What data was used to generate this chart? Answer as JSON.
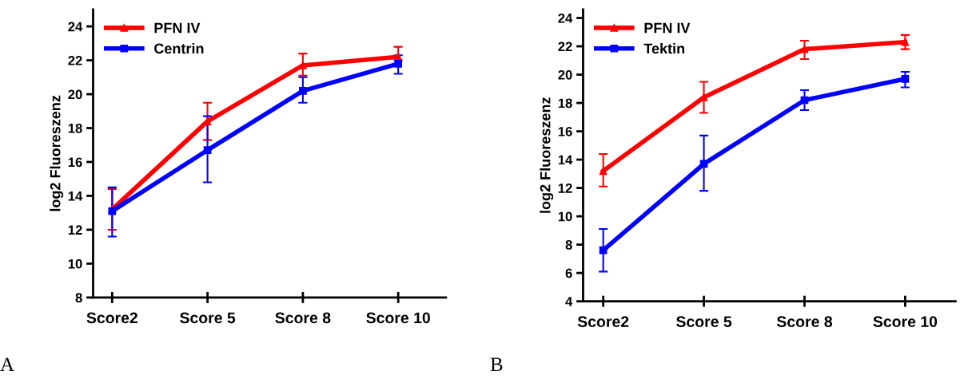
{
  "chart_data": [
    {
      "type": "line",
      "ylabel": "log2 Fluoreszenz",
      "categories": [
        "Score2",
        "Score 5",
        "Score 8",
        "Score 10"
      ],
      "ylim": [
        8,
        25
      ],
      "yticks": [
        8,
        10,
        12,
        14,
        16,
        18,
        20,
        22,
        24
      ],
      "grid": false,
      "legend": "top left",
      "annotations": [
        "A"
      ],
      "series": [
        {
          "name": "PFN IV",
          "color": "#ff0000",
          "marker": "triangle",
          "values": [
            13.2,
            18.4,
            21.7,
            22.2
          ],
          "errors": [
            [
              12.0,
              14.4
            ],
            [
              17.3,
              19.5
            ],
            [
              21.1,
              22.4
            ],
            [
              22.0,
              22.8
            ]
          ]
        },
        {
          "name": "Centrin",
          "color": "#0000ff",
          "marker": "square",
          "values": [
            13.1,
            16.7,
            20.2,
            21.8
          ],
          "errors": [
            [
              11.6,
              14.5
            ],
            [
              14.8,
              18.7
            ],
            [
              19.5,
              21.0
            ],
            [
              21.2,
              22.3
            ]
          ]
        }
      ]
    },
    {
      "type": "line",
      "ylabel": "log2 Fluoreszenz",
      "categories": [
        "Score2",
        "Score 5",
        "Score 8",
        "Score 10"
      ],
      "ylim": [
        4,
        24.6
      ],
      "yticks": [
        4,
        6,
        8,
        10,
        12,
        14,
        16,
        18,
        20,
        22,
        24
      ],
      "grid": false,
      "legend": "top left",
      "annotations": [
        "B"
      ],
      "series": [
        {
          "name": "PFN IV",
          "color": "#ff0000",
          "marker": "triangle",
          "values": [
            13.2,
            18.4,
            21.8,
            22.3
          ],
          "errors": [
            [
              12.1,
              14.4
            ],
            [
              17.3,
              19.5
            ],
            [
              21.1,
              22.4
            ],
            [
              21.8,
              22.8
            ]
          ]
        },
        {
          "name": "Tektin",
          "color": "#0000ff",
          "marker": "square",
          "values": [
            7.6,
            13.7,
            18.2,
            19.7
          ],
          "errors": [
            [
              6.1,
              9.1
            ],
            [
              11.8,
              15.7
            ],
            [
              17.5,
              18.9
            ],
            [
              19.1,
              20.2
            ]
          ]
        }
      ]
    }
  ]
}
